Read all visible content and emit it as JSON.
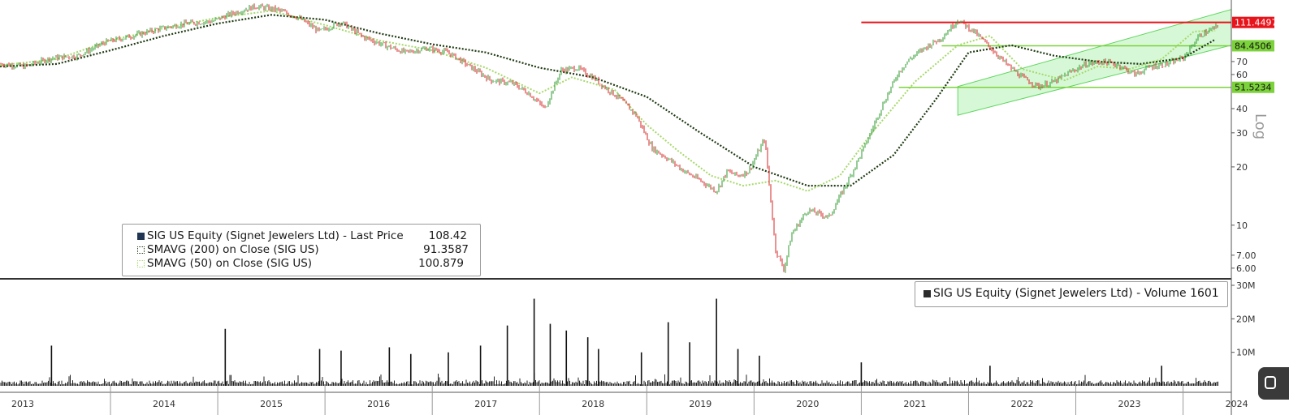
{
  "price_legend": {
    "items": [
      {
        "label": "SIG US Equity (Signet Jewelers Ltd) - Last Price",
        "value": "108.42"
      },
      {
        "label": "SMAVG (200)  on Close (SIG US)",
        "value": "91.3587"
      },
      {
        "label": "SMAVG (50)  on Close (SIG US)",
        "value": "100.879"
      }
    ]
  },
  "volume_legend": {
    "label": "SIG US Equity (Signet Jewelers Ltd) - Volume 1601"
  },
  "colors": {
    "up": "#2e9a2e",
    "down": "#d62626",
    "sma200": "#1f3a12",
    "sma50": "#a6d96a",
    "resistance": "#e8141c",
    "support": "#7bd23a",
    "channel_fill": "#b7f2b7",
    "channel_line": "#5fd65f"
  },
  "chart_data": [
    {
      "type": "line",
      "scale": "log",
      "axis_label": "Log",
      "y_ticks": [
        "70",
        "60",
        "40",
        "30",
        "20",
        "10",
        "7.00",
        "6.00"
      ],
      "x_ticks": [
        "2013",
        "2014",
        "2015",
        "2016",
        "2017",
        "2018",
        "2019",
        "2020",
        "2021",
        "2022",
        "2023",
        "2024"
      ],
      "xlim": [
        2012.97,
        2024.45
      ],
      "ylim": [
        5.6,
        140
      ],
      "series": [
        {
          "name": "SIG US Equity (Signet Jewelers Ltd) - Last Price",
          "last": 108.42,
          "x": [
            2012.97,
            2013.2,
            2013.45,
            2013.7,
            2013.95,
            2014.2,
            2014.45,
            2014.7,
            2014.95,
            2015.15,
            2015.35,
            2015.55,
            2015.75,
            2015.95,
            2016.15,
            2016.35,
            2016.55,
            2016.75,
            2016.95,
            2017.15,
            2017.35,
            2017.55,
            2017.75,
            2017.9,
            2018.05,
            2018.2,
            2018.35,
            2018.5,
            2018.6,
            2018.75,
            2018.9,
            2019.05,
            2019.2,
            2019.35,
            2019.5,
            2019.65,
            2019.75,
            2019.85,
            2019.95,
            2020.1,
            2020.2,
            2020.28,
            2020.35,
            2020.5,
            2020.7,
            2020.9,
            2021.05,
            2021.2,
            2021.35,
            2021.45,
            2021.6,
            2021.75,
            2021.9,
            2022.05,
            2022.2,
            2022.35,
            2022.5,
            2022.65,
            2022.8,
            2022.95,
            2023.1,
            2023.25,
            2023.4,
            2023.55,
            2023.7,
            2023.85,
            2024.0,
            2024.15,
            2024.3
          ],
          "y": [
            68,
            66,
            73,
            75,
            88,
            95,
            103,
            110,
            113,
            125,
            135,
            130,
            118,
            100,
            112,
            94,
            85,
            78,
            82,
            78,
            66,
            56,
            54,
            48,
            40,
            63,
            65,
            58,
            52,
            45,
            37,
            25,
            22,
            19,
            17,
            15,
            19,
            18,
            19,
            28,
            7.5,
            5.9,
            9,
            12,
            11,
            18,
            27,
            42,
            62,
            72,
            83,
            93,
            115,
            100,
            83,
            68,
            58,
            52,
            55,
            62,
            68,
            70,
            67,
            60,
            66,
            68,
            73,
            95,
            105
          ]
        },
        {
          "name": "SMAVG (200)  on Close (SIG US)",
          "last": 91.3587,
          "x": [
            2012.97,
            2013.5,
            2014.0,
            2014.5,
            2015.0,
            2015.5,
            2016.0,
            2016.5,
            2017.0,
            2017.5,
            2018.0,
            2018.5,
            2019.0,
            2019.5,
            2020.0,
            2020.5,
            2020.9,
            2021.3,
            2021.7,
            2022.0,
            2022.4,
            2022.8,
            2023.2,
            2023.6,
            2024.0,
            2024.3
          ],
          "y": [
            66,
            68,
            80,
            95,
            110,
            122,
            115,
            98,
            86,
            78,
            65,
            58,
            46,
            30,
            20,
            16,
            16,
            23,
            45,
            78,
            85,
            75,
            70,
            68,
            73,
            91
          ]
        },
        {
          "name": "SMAVG (50)  on Close (SIG US)",
          "last": 100.879,
          "x": [
            2012.97,
            2013.5,
            2014.0,
            2014.5,
            2015.0,
            2015.5,
            2016.0,
            2016.5,
            2017.0,
            2017.5,
            2018.0,
            2018.3,
            2018.7,
            2019.0,
            2019.3,
            2019.6,
            2019.9,
            2020.2,
            2020.5,
            2020.8,
            2021.1,
            2021.5,
            2021.9,
            2022.2,
            2022.5,
            2022.9,
            2023.2,
            2023.5,
            2023.8,
            2024.1,
            2024.3
          ],
          "y": [
            67,
            72,
            90,
            104,
            118,
            128,
            108,
            90,
            80,
            65,
            48,
            58,
            50,
            33,
            24,
            18,
            16,
            17,
            15,
            18,
            30,
            55,
            85,
            95,
            64,
            56,
            66,
            64,
            72,
            100,
            101
          ]
        }
      ],
      "annotations": [
        {
          "label": "111.4497",
          "type": "resistance",
          "y": 111.4497
        },
        {
          "label": "84.4506",
          "type": "support",
          "y": 84.4506
        },
        {
          "label": "51.5234",
          "type": "support",
          "y": 51.5234
        },
        {
          "type": "trend-channel",
          "from": {
            "x": 2021.9,
            "y_low": 37,
            "y_high": 52
          },
          "to": {
            "x": 2024.45,
            "y_low": 85,
            "y_high": 130
          }
        }
      ]
    },
    {
      "type": "bar",
      "name": "SIG US Equity (Signet Jewelers Ltd) - Volume",
      "last": 1601,
      "y_ticks": [
        "30M",
        "20M",
        "10M"
      ],
      "ylim": [
        0,
        30
      ],
      "spikes_x": [
        2013.45,
        2015.07,
        2015.95,
        2016.15,
        2016.6,
        2016.8,
        2017.15,
        2017.45,
        2017.7,
        2017.95,
        2018.1,
        2018.25,
        2018.45,
        2018.55,
        2018.95,
        2019.2,
        2019.4,
        2019.65,
        2019.85,
        2020.05,
        2021.0,
        2022.2,
        2023.8
      ],
      "spikes_y": [
        12,
        17,
        11,
        10.5,
        11.5,
        9.5,
        10,
        12,
        18,
        26,
        18.5,
        16.5,
        14.5,
        11,
        10,
        19,
        13,
        26,
        11,
        9,
        7,
        6,
        6
      ]
    }
  ]
}
